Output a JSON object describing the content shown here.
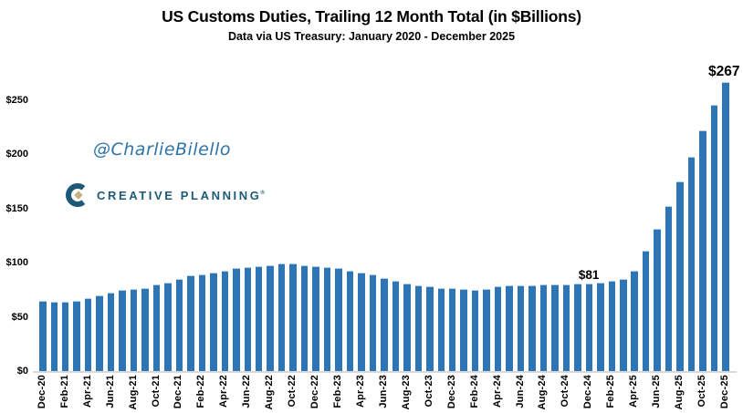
{
  "title": "US Customs Duties, Trailing 12 Month Total (in $Billions)",
  "subtitle": "Data via US Treasury: January 2020 - December 2025",
  "watermark": "@CharlieBilello",
  "logo": {
    "text": "CREATIVE PLANNING",
    "registered": "®"
  },
  "colors": {
    "bar": "#2E75B6",
    "bar_cap": "#AECDE9",
    "watermark_blue": "#2E74A8",
    "logo_teal": "#1E5A78",
    "logo_gold": "#C7B37F",
    "axis_line": "#D9D9D9",
    "text": "#000000"
  },
  "chart_data": {
    "type": "bar",
    "title": "US Customs Duties, Trailing 12 Month Total (in $Billions)",
    "subtitle": "Data via US Treasury: January 2020 - December 2025",
    "unit": "$ Billions",
    "grid": false,
    "legend": "none",
    "y_ticks": [
      "$0",
      "$50",
      "$100",
      "$150",
      "$200",
      "$250"
    ],
    "ylim": [
      0,
      270
    ],
    "x_label_every": 2,
    "categories": [
      "Dec-20",
      "Jan-21",
      "Feb-21",
      "Mar-21",
      "Apr-21",
      "May-21",
      "Jun-21",
      "Jul-21",
      "Aug-21",
      "Sep-21",
      "Oct-21",
      "Nov-21",
      "Dec-21",
      "Jan-22",
      "Feb-22",
      "Mar-22",
      "Apr-22",
      "May-22",
      "Jun-22",
      "Jul-22",
      "Aug-22",
      "Sep-22",
      "Oct-22",
      "Nov-22",
      "Dec-22",
      "Jan-23",
      "Feb-23",
      "Mar-23",
      "Apr-23",
      "May-23",
      "Jun-23",
      "Jul-23",
      "Aug-23",
      "Sep-23",
      "Oct-23",
      "Nov-23",
      "Dec-23",
      "Jan-24",
      "Feb-24",
      "Mar-24",
      "Apr-24",
      "May-24",
      "Jun-24",
      "Jul-24",
      "Aug-24",
      "Sep-24",
      "Oct-24",
      "Nov-24",
      "Dec-24",
      "Jan-25",
      "Feb-25",
      "Mar-25",
      "Apr-25",
      "May-25",
      "Jun-25",
      "Jul-25",
      "Aug-25",
      "Sep-25",
      "Oct-25",
      "Nov-25",
      "Dec-25"
    ],
    "values": [
      65,
      64,
      64,
      65,
      67,
      70,
      72,
      75,
      76,
      77,
      80,
      82,
      85,
      88,
      89,
      91,
      93,
      95,
      96,
      97,
      98,
      99,
      99,
      98,
      97,
      96,
      95,
      93,
      91,
      89,
      86,
      83,
      81,
      79,
      78,
      77,
      77,
      76,
      75,
      76,
      78,
      79,
      79,
      79,
      80,
      80,
      80,
      81,
      81,
      82,
      83,
      85,
      93,
      111,
      131,
      152,
      175,
      198,
      222,
      246,
      267
    ],
    "annotations": [
      {
        "category": "Dec-24",
        "label": "$81",
        "emphasis": false
      },
      {
        "category": "Dec-25",
        "label": "$267",
        "emphasis": true
      }
    ]
  }
}
